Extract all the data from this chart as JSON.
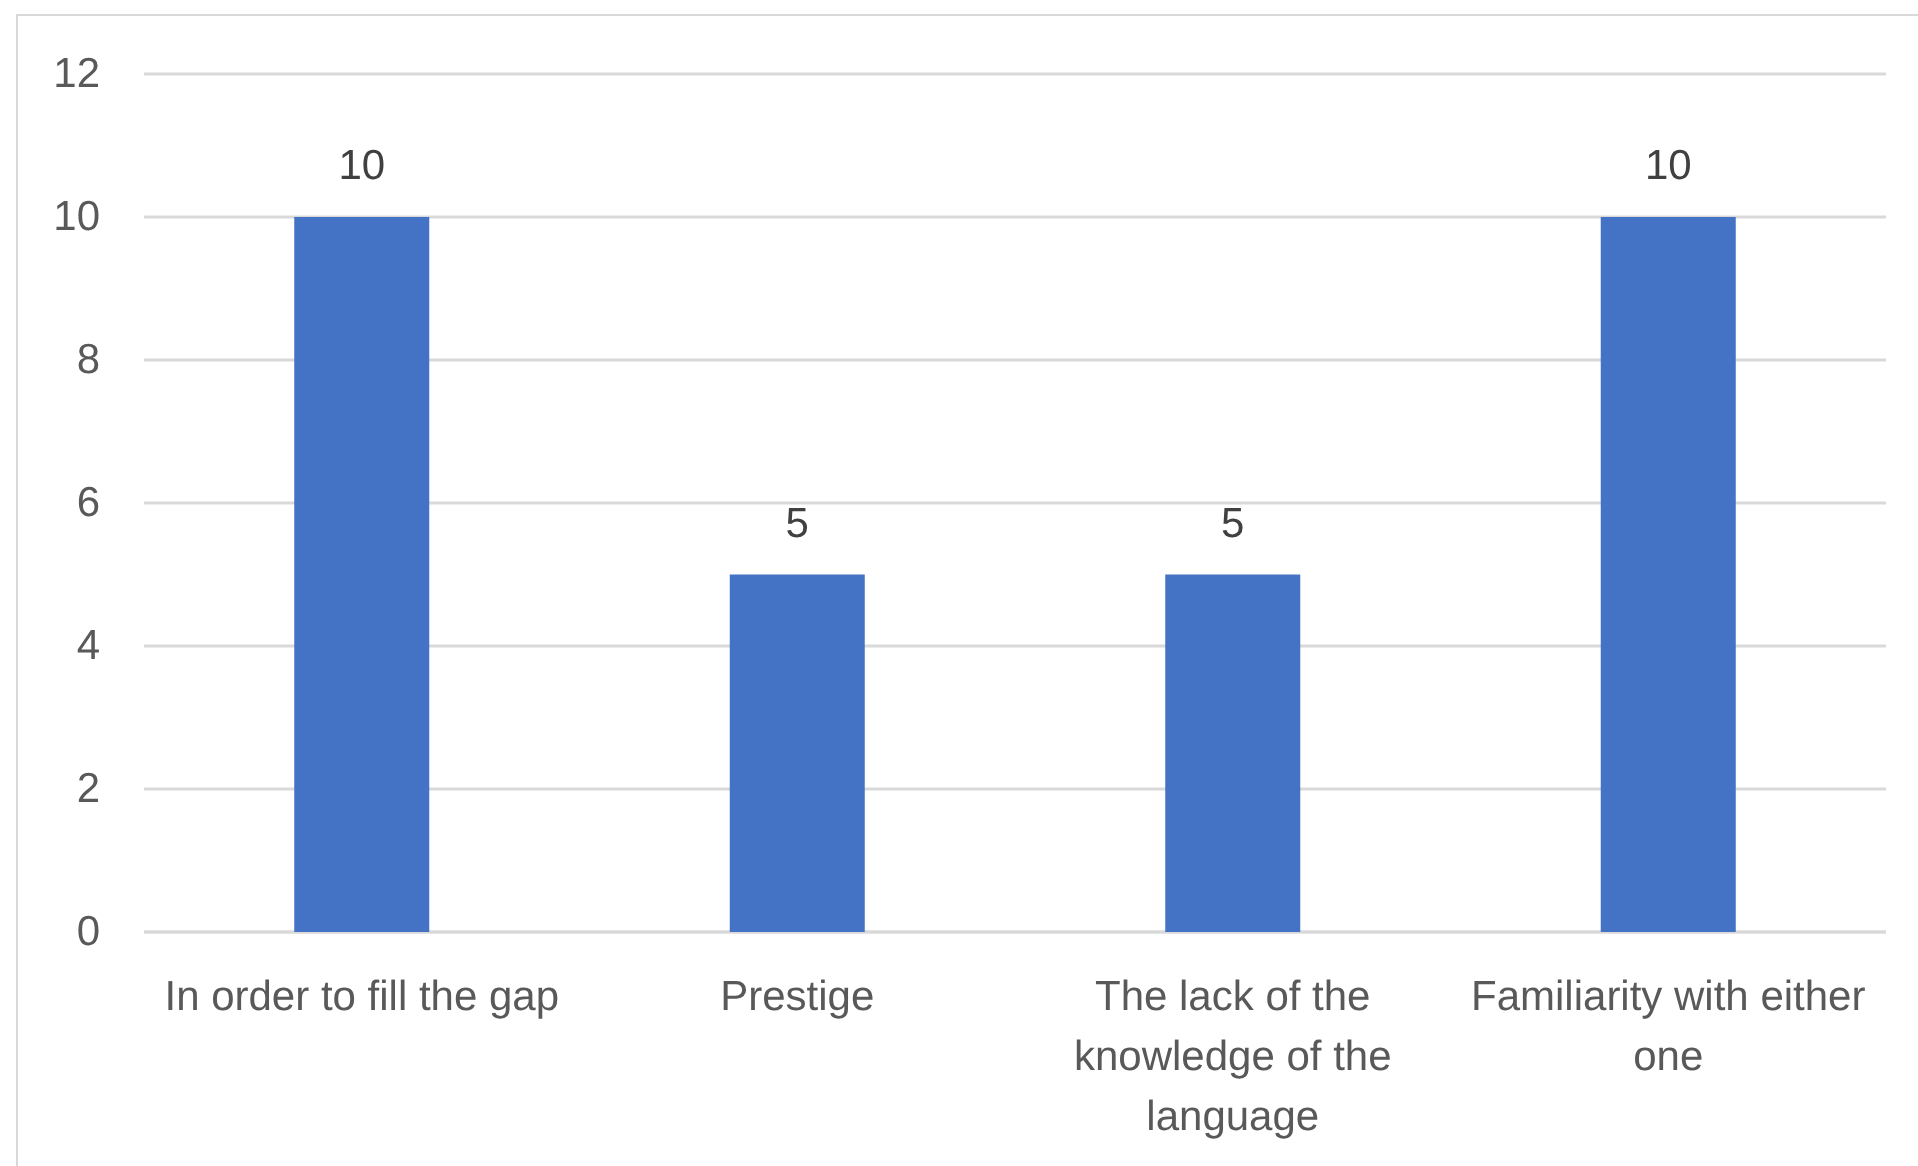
{
  "chart_data": {
    "type": "bar",
    "categories": [
      "In order to fill the gap",
      "Prestige",
      "The lack of the knowledge of the language",
      "Familiarity with either one"
    ],
    "values": [
      10,
      5,
      5,
      10
    ],
    "color": "#4472c4",
    "ylim": [
      0,
      12
    ],
    "yticks": [
      0,
      2,
      4,
      6,
      8,
      10,
      12
    ],
    "grid": "y",
    "data_labels": true
  }
}
